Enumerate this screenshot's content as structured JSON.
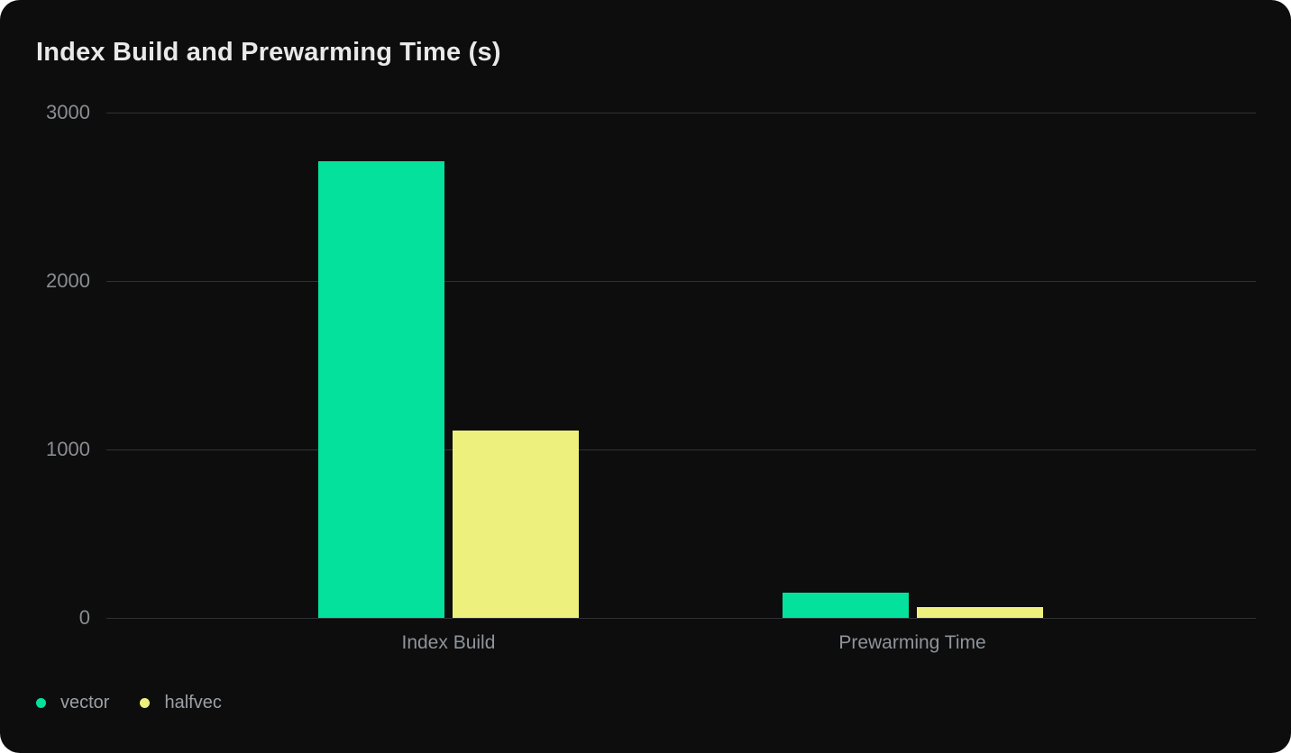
{
  "chart_data": {
    "type": "bar",
    "title": "Index Build and Prewarming Time (s)",
    "categories": [
      "Index Build",
      "Prewarming Time"
    ],
    "series": [
      {
        "name": "vector",
        "color": "#04e19c",
        "values": [
          2710,
          150
        ]
      },
      {
        "name": "halfvec",
        "color": "#edf07c",
        "values": [
          1110,
          65
        ]
      }
    ],
    "ylim": [
      0,
      3000
    ],
    "yticks": [
      0,
      1000,
      2000,
      3000
    ],
    "xlabel": "",
    "ylabel": "",
    "grid": true,
    "legend_position": "bottom-left",
    "styles": {
      "page_background": "#ffffff",
      "background": "#0d0d0d",
      "title": "#e9e9ea",
      "gridline": "#2f3235",
      "tick_label": "#8a8d91",
      "axis_label": "#8f949b",
      "legend_label": "#9aa0a5"
    }
  }
}
